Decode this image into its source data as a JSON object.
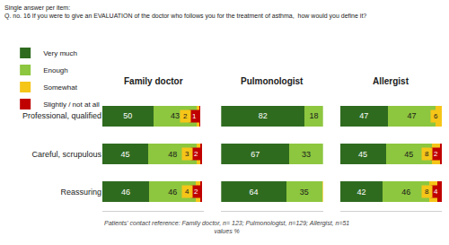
{
  "chart_data": {
    "type": "bar",
    "orientation": "horizontal",
    "stacked": true,
    "data_labels": true,
    "tick_labels": "y",
    "grid": false,
    "legend": "top left",
    "subtitle": "Single answer per item:",
    "title": "Q. no. 16 If you were to give an EVALUATION of the doctor who follows you for the treatment of asthma,  how would you define it?",
    "annotations": [
      "Patients' contact reference: Family doctor, n= 123; Pulmonologist, n=129; Allergist, n=51",
      "values %"
    ],
    "panels": [
      "Family doctor",
      "Pulmonologist",
      "Allergist"
    ],
    "categories": [
      "Professional, qualified",
      "Careful, scrupulous",
      "Reassuring"
    ],
    "xlim": [
      0,
      100
    ],
    "series": [
      {
        "name": "Very much",
        "color": "#2f6b1f",
        "values": [
          [
            50,
            45,
            46
          ],
          [
            82,
            67,
            64
          ],
          [
            47,
            45,
            42
          ]
        ]
      },
      {
        "name": "Enough",
        "color": "#8dc63f",
        "values": [
          [
            43,
            48,
            46
          ],
          [
            18,
            33,
            35
          ],
          [
            47,
            45,
            46
          ]
        ]
      },
      {
        "name": "Somewhat",
        "color": "#f5c518",
        "values": [
          [
            2,
            3,
            4
          ],
          [
            null,
            null,
            1
          ],
          [
            6,
            8,
            8
          ]
        ]
      },
      {
        "name": "Slightly / not at all",
        "color": "#c00000",
        "values": [
          [
            1,
            2,
            2
          ],
          [
            null,
            null,
            1
          ],
          [
            null,
            2,
            4
          ]
        ]
      }
    ]
  }
}
